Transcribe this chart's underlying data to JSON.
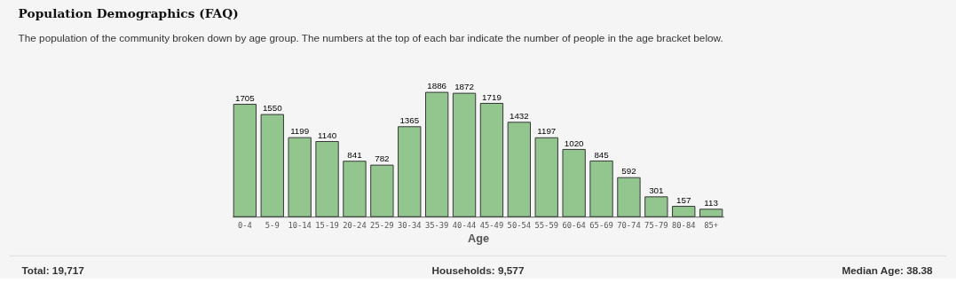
{
  "chart_data": {
    "type": "bar",
    "title": "Population Demographics (FAQ)",
    "subtitle": "The population of the community broken down by age group. The numbers at the top of each bar indicate the number of people in the age bracket below.",
    "xlabel": "Age",
    "categories": [
      "0-4",
      "5-9",
      "10-14",
      "15-19",
      "20-24",
      "25-29",
      "30-34",
      "35-39",
      "40-44",
      "45-49",
      "50-54",
      "55-59",
      "60-64",
      "65-69",
      "70-74",
      "75-79",
      "80-84",
      "85+"
    ],
    "values": [
      1705,
      1550,
      1199,
      1140,
      841,
      782,
      1365,
      1886,
      1872,
      1719,
      1432,
      1197,
      1020,
      845,
      592,
      301,
      157,
      113
    ],
    "color": "#93c68f",
    "data_labels": true,
    "annotations": [
      "Total: 19,717",
      "Households: 9,577",
      "Median Age: 38.38"
    ]
  }
}
